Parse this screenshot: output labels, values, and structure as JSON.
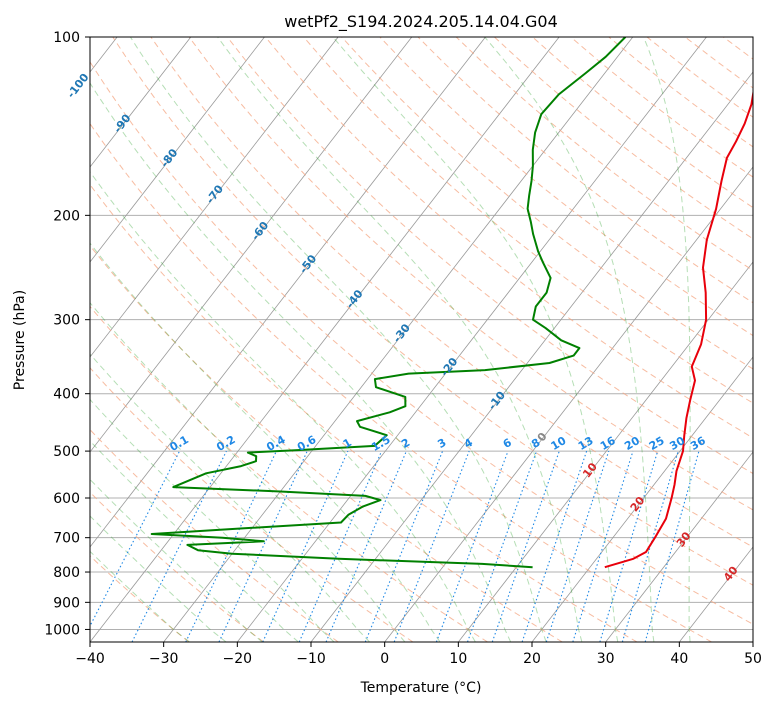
{
  "chart_data": {
    "type": "skew-t",
    "title": "wetPf2_S194.2024.205.14.04.G04",
    "xlabel": "Temperature (°C)",
    "ylabel": "Pressure (hPa)",
    "xlim": [
      -40,
      50
    ],
    "ylim": [
      1050,
      100
    ],
    "y_scale": "log",
    "x_ticks": [
      "−40",
      "−30",
      "−20",
      "−10",
      "0",
      "10",
      "20",
      "30",
      "40",
      "50"
    ],
    "y_ticks": [
      "100",
      "200",
      "300",
      "400",
      "500",
      "600",
      "700",
      "800",
      "900",
      "1000"
    ],
    "y_tick_values": [
      100,
      200,
      300,
      400,
      500,
      600,
      700,
      800,
      900,
      1000
    ],
    "grid": true,
    "colors": {
      "temperature": "#e8000b",
      "dewpoint": "#008000",
      "isotherm": "#999999",
      "dry_adiabat": "#f4a582",
      "moist_adiabat": "#2ca02c",
      "mixing_ratio": "#1e88e5",
      "isotherm_label": "#1f77b4",
      "warm_label": "#d62728"
    },
    "isotherm_labels": [
      {
        "label": "-100",
        "t": -100
      },
      {
        "label": "-90",
        "t": -90
      },
      {
        "label": "-80",
        "t": -80
      },
      {
        "label": "-70",
        "t": -70
      },
      {
        "label": "-60",
        "t": -60
      },
      {
        "label": "-50",
        "t": -50
      },
      {
        "label": "-40",
        "t": -40
      },
      {
        "label": "-30",
        "t": -30
      },
      {
        "label": "-20",
        "t": -20
      },
      {
        "label": "-10",
        "t": -10
      }
    ],
    "zero_label": {
      "label": "0",
      "t": 0
    },
    "warm_isotherm_labels": [
      {
        "label": "10",
        "t": 10
      },
      {
        "label": "20",
        "t": 20
      },
      {
        "label": "30",
        "t": 30
      },
      {
        "label": "40",
        "t": 40
      }
    ],
    "mixing_ratio_labels": [
      {
        "label": "0.1",
        "w": 0.1
      },
      {
        "label": "0.2",
        "w": 0.2
      },
      {
        "label": "0.4",
        "w": 0.4
      },
      {
        "label": "0.6",
        "w": 0.6
      },
      {
        "label": "1",
        "w": 1
      },
      {
        "label": "1.5",
        "w": 1.5
      },
      {
        "label": "2",
        "w": 2
      },
      {
        "label": "3",
        "w": 3
      },
      {
        "label": "4",
        "w": 4
      },
      {
        "label": "6",
        "w": 6
      },
      {
        "label": "8",
        "w": 8
      },
      {
        "label": "10",
        "w": 10
      },
      {
        "label": "13",
        "w": 13
      },
      {
        "label": "16",
        "w": 16
      },
      {
        "label": "20",
        "w": 20
      },
      {
        "label": "25",
        "w": 25
      },
      {
        "label": "30",
        "w": 30
      },
      {
        "label": "36",
        "w": 36
      }
    ],
    "series": [
      {
        "kind": "temperature",
        "points": [
          [
            785,
            22.0
          ],
          [
            760,
            25.0
          ],
          [
            740,
            26.0
          ],
          [
            700,
            25.7
          ],
          [
            650,
            25.2
          ],
          [
            600,
            23.8
          ],
          [
            570,
            22.8
          ],
          [
            540,
            21.6
          ],
          [
            500,
            20.4
          ],
          [
            470,
            18.9
          ],
          [
            440,
            17.4
          ],
          [
            410,
            16.0
          ],
          [
            380,
            14.6
          ],
          [
            360,
            12.7
          ],
          [
            330,
            11.6
          ],
          [
            300,
            9.7
          ],
          [
            270,
            6.8
          ],
          [
            245,
            3.8
          ],
          [
            220,
            1.4
          ],
          [
            195,
            -0.6
          ],
          [
            175,
            -2.8
          ],
          [
            160,
            -4.5
          ],
          [
            150,
            -5.0
          ],
          [
            140,
            -5.7
          ],
          [
            130,
            -6.8
          ],
          [
            120,
            -8.5
          ],
          [
            110,
            -10.2
          ],
          [
            100,
            -11.5
          ]
        ]
      },
      {
        "kind": "dewpoint",
        "points": [
          [
            785,
            12.2
          ],
          [
            775,
            5.0
          ],
          [
            760,
            -15.0
          ],
          [
            745,
            -30.0
          ],
          [
            735,
            -35.0
          ],
          [
            720,
            -37.0
          ],
          [
            710,
            -27.0
          ],
          [
            700,
            -33.0
          ],
          [
            690,
            -43.0
          ],
          [
            675,
            -31.0
          ],
          [
            660,
            -18.5
          ],
          [
            640,
            -18.3
          ],
          [
            620,
            -17.2
          ],
          [
            605,
            -15.5
          ],
          [
            595,
            -18.0
          ],
          [
            585,
            -30.0
          ],
          [
            575,
            -45.0
          ],
          [
            545,
            -42.0
          ],
          [
            530,
            -38.0
          ],
          [
            520,
            -36.5
          ],
          [
            510,
            -37.0
          ],
          [
            503,
            -38.5
          ],
          [
            498,
            -32.0
          ],
          [
            490,
            -22.0
          ],
          [
            470,
            -21.5
          ],
          [
            455,
            -26.0
          ],
          [
            445,
            -27.0
          ],
          [
            430,
            -23.5
          ],
          [
            420,
            -22.0
          ],
          [
            405,
            -23.0
          ],
          [
            390,
            -28.0
          ],
          [
            378,
            -29.0
          ],
          [
            370,
            -25.0
          ],
          [
            365,
            -15.0
          ],
          [
            355,
            -7.0
          ],
          [
            345,
            -4.5
          ],
          [
            335,
            -4.5
          ],
          [
            325,
            -7.8
          ],
          [
            310,
            -11.2
          ],
          [
            300,
            -13.8
          ],
          [
            285,
            -14.8
          ],
          [
            270,
            -14.8
          ],
          [
            255,
            -15.8
          ],
          [
            240,
            -18.5
          ],
          [
            230,
            -20.3
          ],
          [
            215,
            -22.8
          ],
          [
            205,
            -24.4
          ],
          [
            195,
            -26.2
          ],
          [
            185,
            -27.4
          ],
          [
            175,
            -28.6
          ],
          [
            165,
            -30.0
          ],
          [
            155,
            -31.7
          ],
          [
            145,
            -33.2
          ],
          [
            135,
            -34.3
          ],
          [
            125,
            -34.0
          ],
          [
            115,
            -32.6
          ],
          [
            108,
            -31.6
          ],
          [
            100,
            -31.0
          ]
        ]
      }
    ]
  }
}
